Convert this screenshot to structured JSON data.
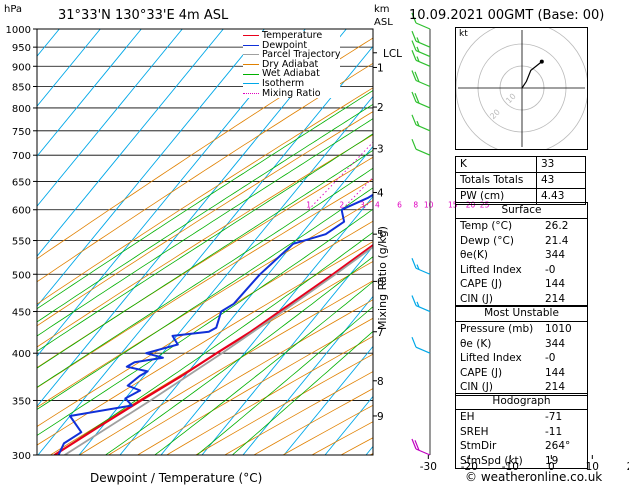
{
  "header": {
    "location": "31°33'N  130°33'E  4m  ASL",
    "datetime": "10.09.2021  00GMT  (Base: 00)",
    "hpa_label": "hPa",
    "km_label": "km",
    "asl_label": "ASL"
  },
  "colors": {
    "temperature": "#e8001c",
    "dewpoint": "#1030d8",
    "parcel": "#a0a0a0",
    "dry_adiabat": "#e08000",
    "wet_adiabat": "#00b000",
    "isotherm": "#00a8e8",
    "mixing_ratio": "#e000c0"
  },
  "chart_data": {
    "type": "line",
    "title": "",
    "xlabel": "Dewpoint / Temperature (°C)",
    "ylabel": "hPa",
    "right_axis_label": "Mixing Ratio (g/kg)",
    "xlim": [
      -35,
      40
    ],
    "ylim": [
      1000,
      300
    ],
    "log_y": true,
    "skew": true,
    "x_ticks": [
      "-30",
      "-20",
      "-10",
      "0",
      "10",
      "20",
      "30",
      "40"
    ],
    "x_tick_values": [
      -30,
      -20,
      -10,
      0,
      10,
      20,
      30,
      40
    ],
    "pressure_ticks": [
      "300",
      "350",
      "400",
      "450",
      "500",
      "550",
      "600",
      "650",
      "700",
      "750",
      "800",
      "850",
      "900",
      "950",
      "1000"
    ],
    "pressure_tick_values": [
      300,
      350,
      400,
      450,
      500,
      550,
      600,
      650,
      700,
      750,
      800,
      850,
      900,
      950,
      1000
    ],
    "km_ticks": [
      {
        "label": "9",
        "p": 335
      },
      {
        "label": "8",
        "p": 370
      },
      {
        "label": "7",
        "p": 425
      },
      {
        "label": "6",
        "p": 490
      },
      {
        "label": "5",
        "p": 560
      },
      {
        "label": "4",
        "p": 630
      },
      {
        "label": "3",
        "p": 713
      },
      {
        "label": "2",
        "p": 802
      },
      {
        "label": "1",
        "p": 897
      },
      {
        "label": "LCL",
        "p": 935
      }
    ],
    "mixing_ratio_labels": [
      "1",
      "2",
      "3",
      "4",
      "6",
      "8",
      "10",
      "15",
      "20",
      "25"
    ],
    "mixing_ratio_values": [
      1,
      2,
      3,
      4,
      6,
      8,
      10,
      15,
      20,
      25
    ],
    "legend": [
      "Temperature",
      "Dewpoint",
      "Parcel Trajectory",
      "Dry Adiabat",
      "Wet Adiabat",
      "Isotherm",
      "Mixing Ratio"
    ],
    "legend_position": "top-center",
    "series": [
      {
        "name": "Temperature",
        "points": [
          [
            1000,
            26.2
          ],
          [
            975,
            24.0
          ],
          [
            950,
            22.0
          ],
          [
            925,
            22.8
          ],
          [
            900,
            23.8
          ],
          [
            875,
            21.8
          ],
          [
            850,
            20.0
          ],
          [
            800,
            17.4
          ],
          [
            750,
            14.6
          ],
          [
            700,
            11.2
          ],
          [
            650,
            8.0
          ],
          [
            600,
            4.4
          ],
          [
            550,
            0.4
          ],
          [
            500,
            -4.2
          ],
          [
            450,
            -9.8
          ],
          [
            425,
            -12.8
          ],
          [
            400,
            -16.8
          ],
          [
            375,
            -20.8
          ],
          [
            350,
            -25.8
          ],
          [
            325,
            -30.8
          ],
          [
            300,
            -36.0
          ]
        ]
      },
      {
        "name": "Dewpoint",
        "points": [
          [
            1000,
            21.4
          ],
          [
            975,
            19.0
          ],
          [
            950,
            17.6
          ],
          [
            940,
            12.0
          ],
          [
            925,
            1.0
          ],
          [
            910,
            -8.0
          ],
          [
            900,
            -12.0
          ],
          [
            893,
            0.0
          ],
          [
            885,
            8.0
          ],
          [
            850,
            9.4
          ],
          [
            800,
            6.0
          ],
          [
            750,
            2.0
          ],
          [
            700,
            -3.0
          ],
          [
            650,
            -7.5
          ],
          [
            620,
            -11.0
          ],
          [
            600,
            -15.0
          ],
          [
            580,
            -12.0
          ],
          [
            560,
            -14.0
          ],
          [
            545,
            -20.0
          ],
          [
            500,
            -22.0
          ],
          [
            460,
            -22.5
          ],
          [
            450,
            -24.0
          ],
          [
            430,
            -22.0
          ],
          [
            425,
            -23.0
          ],
          [
            420,
            -31.0
          ],
          [
            410,
            -28.0
          ],
          [
            400,
            -34.0
          ],
          [
            395,
            -29.0
          ],
          [
            390,
            -35.0
          ],
          [
            385,
            -36.0
          ],
          [
            380,
            -30.0
          ],
          [
            375,
            -31.0
          ],
          [
            365,
            -32.0
          ],
          [
            360,
            -28.0
          ],
          [
            352,
            -30.0
          ],
          [
            345,
            -27.0
          ],
          [
            335,
            -40.0
          ],
          [
            320,
            -34.0
          ],
          [
            310,
            -36.0
          ],
          [
            300,
            -35.0
          ]
        ]
      },
      {
        "name": "Parcel Trajectory",
        "points": [
          [
            1000,
            26.2
          ],
          [
            935,
            21.3
          ],
          [
            900,
            20.0
          ],
          [
            850,
            18.3
          ],
          [
            800,
            16.3
          ],
          [
            750,
            14.0
          ],
          [
            700,
            11.4
          ],
          [
            650,
            8.4
          ],
          [
            600,
            5.0
          ],
          [
            550,
            1.0
          ],
          [
            500,
            -3.6
          ],
          [
            450,
            -9.0
          ],
          [
            400,
            -15.5
          ],
          [
            350,
            -23.5
          ],
          [
            300,
            -33.5
          ]
        ]
      }
    ],
    "wind_barbs": [
      {
        "p": 1000,
        "speed_kt": 10
      },
      {
        "p": 950,
        "speed_kt": 15
      },
      {
        "p": 925,
        "speed_kt": 15
      },
      {
        "p": 900,
        "speed_kt": 15
      },
      {
        "p": 850,
        "speed_kt": 20
      },
      {
        "p": 800,
        "speed_kt": 20
      },
      {
        "p": 750,
        "speed_kt": 15
      },
      {
        "p": 700,
        "speed_kt": 10
      },
      {
        "p": 500,
        "speed_kt": 15
      },
      {
        "p": 450,
        "speed_kt": 15
      },
      {
        "p": 400,
        "speed_kt": 10
      },
      {
        "p": 300,
        "speed_kt": 20
      }
    ]
  },
  "hodograph": {
    "unit_label": "kt",
    "ring_labels": [
      "10",
      "20"
    ],
    "trace_kt": [
      [
        0,
        0
      ],
      [
        2,
        3
      ],
      [
        4,
        8
      ],
      [
        9,
        12
      ]
    ]
  },
  "indices": [
    {
      "label": "K",
      "value": "33"
    },
    {
      "label": "Totals Totals",
      "value": "43"
    },
    {
      "label": "PW (cm)",
      "value": "4.43"
    }
  ],
  "surface": {
    "title": "Surface",
    "rows": [
      {
        "label": "Temp (°C)",
        "value": "26.2"
      },
      {
        "label": "Dewp (°C)",
        "value": "21.4"
      },
      {
        "label": "θe(K)",
        "value": "344"
      },
      {
        "label": "Lifted Index",
        "value": "-0"
      },
      {
        "label": "CAPE (J)",
        "value": "144"
      },
      {
        "label": "CIN (J)",
        "value": "214"
      }
    ]
  },
  "most_unstable": {
    "title": "Most Unstable",
    "rows": [
      {
        "label": "Pressure (mb)",
        "value": "1010"
      },
      {
        "label": "θe (K)",
        "value": "344"
      },
      {
        "label": "Lifted Index",
        "value": "-0"
      },
      {
        "label": "CAPE (J)",
        "value": "144"
      },
      {
        "label": "CIN (J)",
        "value": "214"
      }
    ]
  },
  "hodograph_table": {
    "title": "Hodograph",
    "rows": [
      {
        "label": "EH",
        "value": "-71"
      },
      {
        "label": "SREH",
        "value": "-11"
      },
      {
        "label": "StmDir",
        "value": "264°"
      },
      {
        "label": "StmSpd (kt)",
        "value": "19"
      }
    ]
  },
  "footer": "© weatheronline.co.uk"
}
